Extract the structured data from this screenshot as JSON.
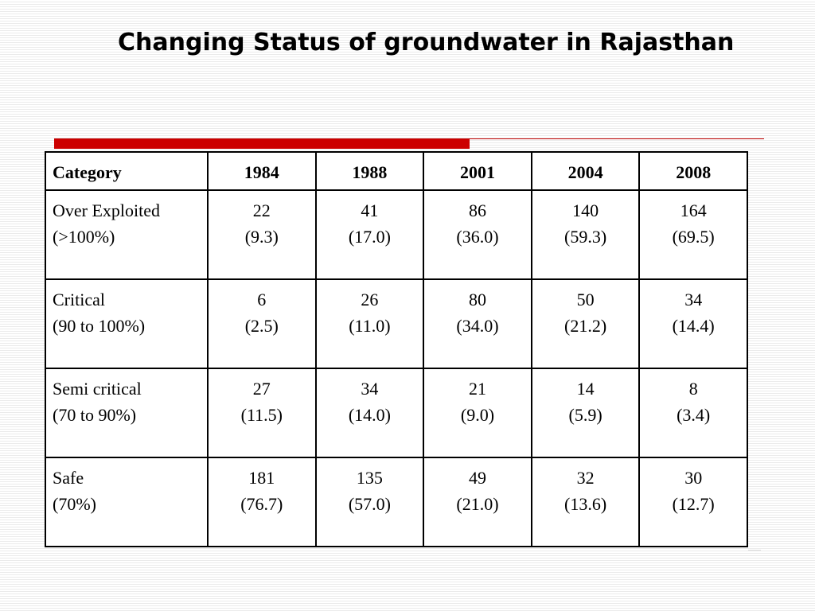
{
  "title": "Changing Status of groundwater in Rajasthan",
  "table": {
    "headers": [
      "Category",
      "1984",
      "1988",
      "2001",
      "2004",
      "2008"
    ],
    "rows": [
      {
        "category": "Over Exploited",
        "range": "(>100%)",
        "counts": [
          "22",
          "41",
          "86",
          "140",
          "164"
        ],
        "percents": [
          "(9.3)",
          "(17.0)",
          "(36.0)",
          "(59.3)",
          "(69.5)"
        ]
      },
      {
        "category": "Critical",
        "range": "(90 to 100%)",
        "counts": [
          "6",
          "26",
          "80",
          "50",
          "34"
        ],
        "percents": [
          "(2.5)",
          "(11.0)",
          "(34.0)",
          "(21.2)",
          "(14.4)"
        ]
      },
      {
        "category": "Semi critical",
        "range": "(70 to 90%)",
        "counts": [
          "27",
          "34",
          "21",
          "14",
          "8"
        ],
        "percents": [
          "(11.5)",
          "(14.0)",
          "(9.0)",
          "(5.9)",
          "(3.4)"
        ]
      },
      {
        "category": "Safe",
        "range": "(70%)",
        "counts": [
          "181",
          "135",
          "49",
          "32",
          "30"
        ],
        "percents": [
          "(76.7)",
          "(57.0)",
          "(21.0)",
          "(13.6)",
          "(12.7)"
        ]
      }
    ]
  },
  "colors": {
    "accent": "#cc0000",
    "text": "#000000",
    "background": "#ffffff"
  }
}
